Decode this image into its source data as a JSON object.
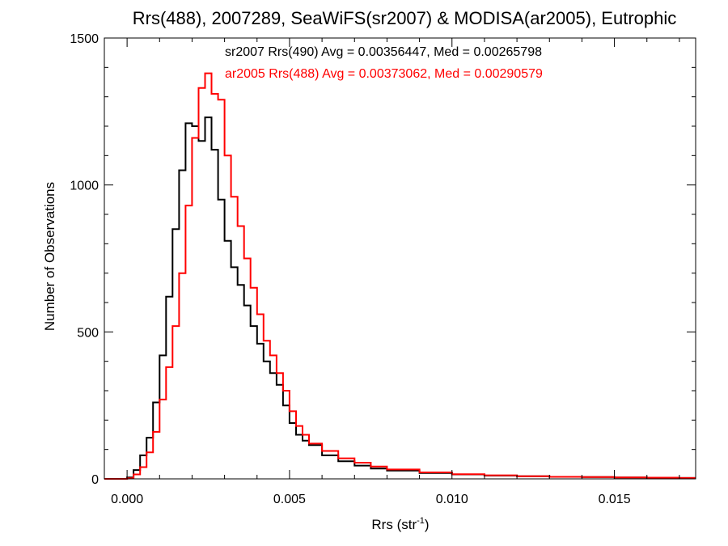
{
  "chart_data": {
    "type": "line",
    "step": true,
    "title": "Rrs(488), 2007289, SeaWiFS(sr2007) & MODISA(ar2005), Eutrophic",
    "xlabel": {
      "base": "Rrs (str",
      "sup": "-1",
      "tail": ")"
    },
    "ylabel": "Number of Observations",
    "xlim": [
      -0.0007,
      0.0175
    ],
    "ylim": [
      0,
      1500
    ],
    "xticks": [
      0.0,
      0.005,
      0.01,
      0.015
    ],
    "xtick_labels": [
      "0.000",
      "0.005",
      "0.010",
      "0.015"
    ],
    "yticks": [
      0,
      500,
      1000,
      1500
    ],
    "ytick_labels": [
      "0",
      "500",
      "1000",
      "1500"
    ],
    "grid": false,
    "annotations": [
      {
        "text": "sr2007 Rrs(490) Avg = 0.00356447, Med = 0.00265798",
        "color": "#000000"
      },
      {
        "text": "ar2005 Rrs(488) Avg = 0.00373062, Med = 0.00290579",
        "color": "#ff0000"
      }
    ],
    "series": [
      {
        "color": "#000000",
        "x": [
          -0.0007,
          -0.0002,
          0.0,
          0.0002,
          0.0004,
          0.0006,
          0.0008,
          0.001,
          0.0012,
          0.0014,
          0.0016,
          0.0018,
          0.002,
          0.0022,
          0.0024,
          0.0026,
          0.0028,
          0.003,
          0.0032,
          0.0034,
          0.0036,
          0.0038,
          0.004,
          0.0042,
          0.0044,
          0.0046,
          0.0048,
          0.005,
          0.0052,
          0.0054,
          0.0056,
          0.006,
          0.0065,
          0.007,
          0.0075,
          0.008,
          0.009,
          0.01,
          0.011,
          0.012,
          0.013,
          0.014,
          0.015,
          0.016,
          0.017,
          0.0175
        ],
        "y": [
          0,
          0,
          5,
          30,
          80,
          140,
          260,
          420,
          620,
          850,
          1050,
          1210,
          1200,
          1150,
          1230,
          1120,
          950,
          810,
          720,
          660,
          590,
          520,
          460,
          400,
          360,
          320,
          250,
          190,
          150,
          130,
          115,
          80,
          60,
          45,
          35,
          28,
          20,
          15,
          11,
          9,
          7,
          6,
          5,
          4,
          3,
          3
        ]
      },
      {
        "color": "#ff0000",
        "x": [
          -0.0007,
          -0.0002,
          0.0,
          0.0002,
          0.0004,
          0.0006,
          0.0008,
          0.001,
          0.0012,
          0.0014,
          0.0016,
          0.0018,
          0.002,
          0.0022,
          0.0024,
          0.0026,
          0.0028,
          0.003,
          0.0032,
          0.0034,
          0.0036,
          0.0038,
          0.004,
          0.0042,
          0.0044,
          0.0046,
          0.0048,
          0.005,
          0.0052,
          0.0054,
          0.0056,
          0.006,
          0.0065,
          0.007,
          0.0075,
          0.008,
          0.009,
          0.01,
          0.011,
          0.012,
          0.013,
          0.014,
          0.015,
          0.016,
          0.017,
          0.0175
        ],
        "y": [
          0,
          0,
          2,
          15,
          40,
          90,
          160,
          270,
          380,
          520,
          700,
          930,
          1160,
          1330,
          1380,
          1310,
          1290,
          1100,
          960,
          860,
          750,
          650,
          560,
          470,
          420,
          360,
          300,
          230,
          180,
          150,
          120,
          95,
          70,
          55,
          42,
          32,
          22,
          16,
          12,
          9,
          7,
          6,
          5,
          4,
          3,
          3
        ]
      }
    ]
  }
}
